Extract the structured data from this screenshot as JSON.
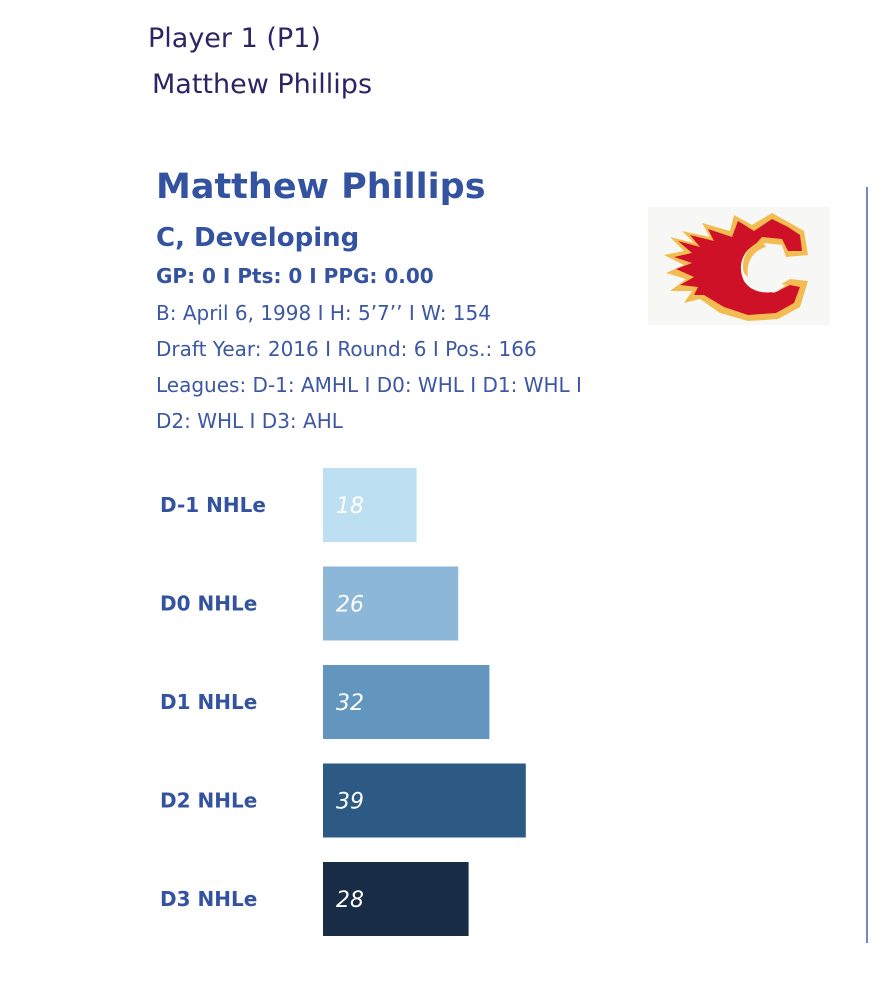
{
  "header": {
    "player_slot": "Player 1 (P1)",
    "player_name": "Matthew Phillips"
  },
  "card": {
    "name": "Matthew Phillips",
    "position_status": "C, Developing",
    "stats_line": "GP: 0 I Pts: 0 I PPG: 0.00",
    "bio_line": "B: April 6, 1998 I H: 5’7’’ I W: 154",
    "draft_line": "Draft Year: 2016 I Round: 6 I Pos.: 166",
    "leagues_line1": "Leagues: D-1: AMHL I D0: WHL I D1: WHL I",
    "leagues_line2": "D2: WHL I D3: AHL",
    "team_logo_icon": "calgary-flames-logo-icon",
    "logo_colors": {
      "red": "#ce1126",
      "yellow": "#f3bc52"
    }
  },
  "chart_data": {
    "type": "bar",
    "orientation": "horizontal",
    "categories": [
      "D-1 NHLe",
      "D0 NHLe",
      "D1 NHLe",
      "D2 NHLe",
      "D3 NHLe"
    ],
    "values": [
      18,
      26,
      32,
      39,
      28
    ],
    "colors": [
      "#bddff2",
      "#8cb7d9",
      "#6396bf",
      "#2c5a84",
      "#182d45"
    ],
    "data_labels": [
      "18",
      "26",
      "32",
      "39",
      "28"
    ]
  }
}
